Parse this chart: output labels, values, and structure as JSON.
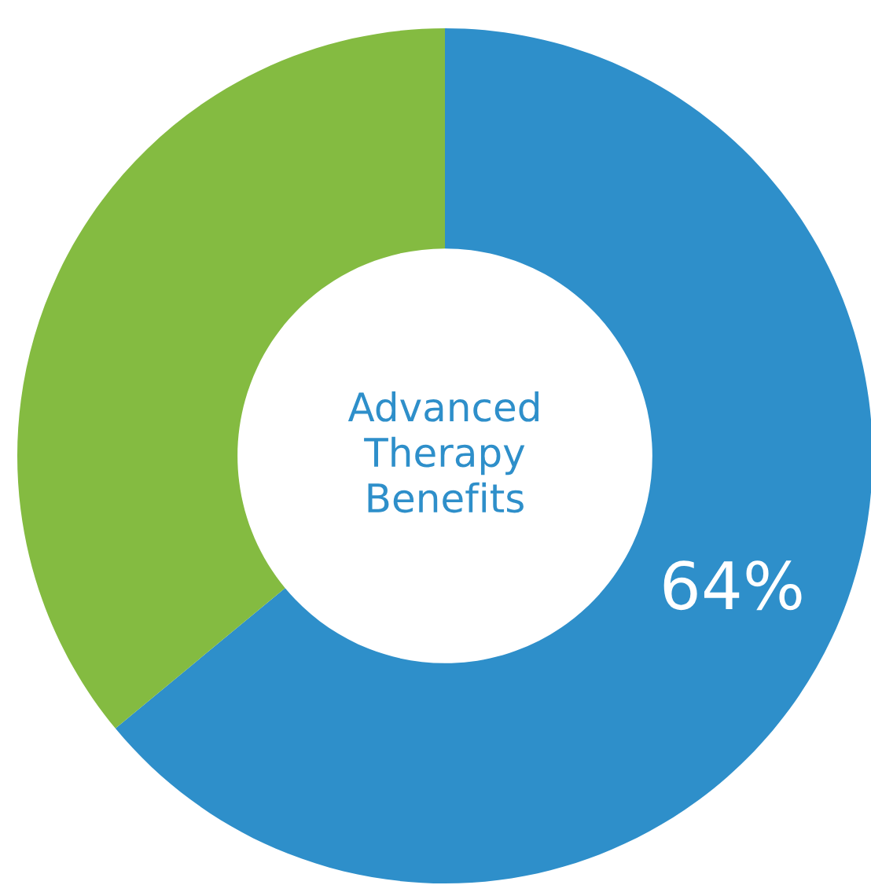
{
  "chart_data": {
    "type": "donut",
    "title": "Advanced Therapy Benefits",
    "categories": [
      null,
      null
    ],
    "values": [
      64,
      36
    ],
    "colors": [
      "#2e8fca",
      "#84bb41"
    ],
    "value_labels": [
      "64%",
      null
    ]
  }
}
